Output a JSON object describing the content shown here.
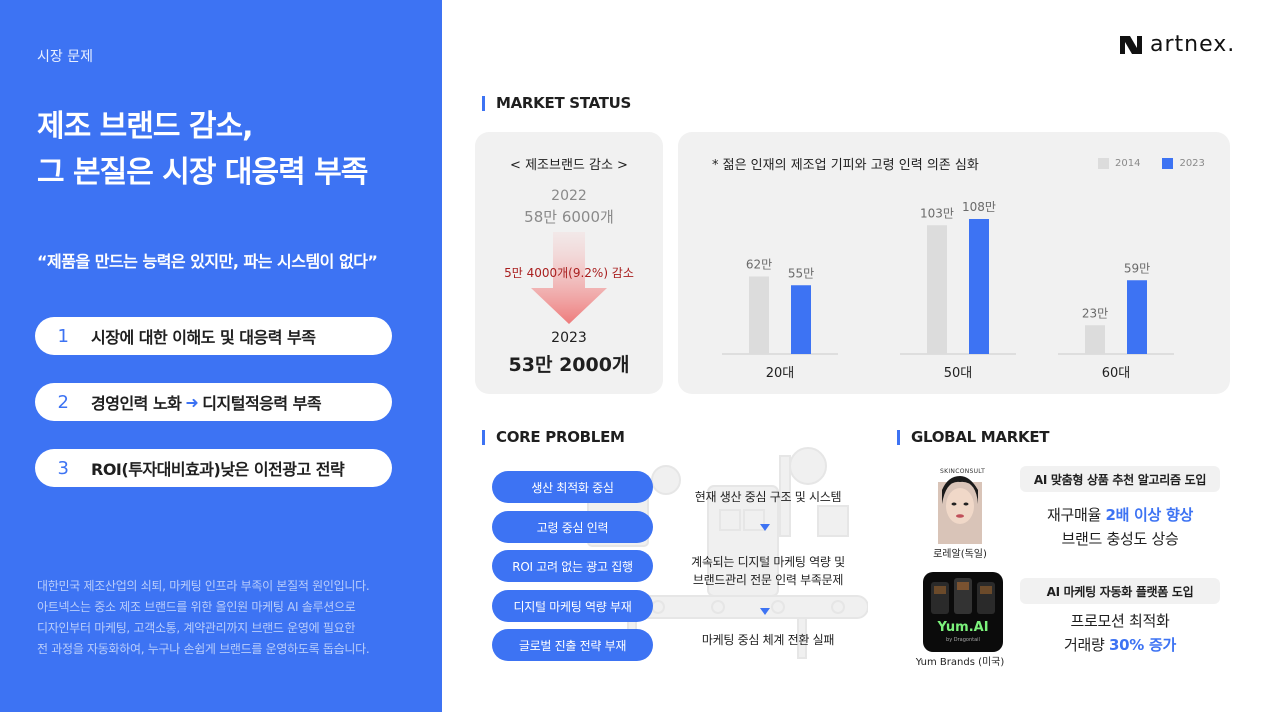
{
  "left": {
    "section_label": "시장 문제",
    "headline_1": "제조 브랜드 감소,",
    "headline_2": "그 본질은 시장 대응력 부족",
    "quote": "“제품을 만드는 능력은 있지만, 파는 시스템이 없다”",
    "items": [
      {
        "num": "1",
        "text": "시장에 대한 이해도 및 대응력 부족"
      },
      {
        "num": "2",
        "text_a": "경영인력 노화",
        "arrow": "➜",
        "text_b": "디지털적응력 부족"
      },
      {
        "num": "3",
        "text": "ROI(투자대비효과)낮은 이전광고 전략"
      }
    ],
    "desc": [
      "대한민국 제조산업의 쇠퇴, 마케팅 인프라 부족이 본질적 원인입니다.",
      "아트넥스는 중소 제조 브랜드를 위한 올인원 마케팅 AI 솔루션으로",
      "디자인부터 마케팅, 고객소통, 계약관리까지 브랜드 운영에 필요한",
      "전 과정을 자동화하여, 누구나 손쉽게 브랜드를 운영하도록 돕습니다."
    ]
  },
  "logo": {
    "text": "artnex."
  },
  "market_status": {
    "title": "MARKET STATUS",
    "decline_card": {
      "title": "< 제조브랜드 감소 >",
      "year_from": "2022",
      "value_from": "58만 6000개",
      "decrease": "5만 4000개(9.2%) 감소",
      "year_to": "2023",
      "value_to": "53만 2000개"
    }
  },
  "chart_data": {
    "type": "bar",
    "title": "* 젊은 인재의 제조업 기피와 고령 인력 의존 심화",
    "categories": [
      "20대",
      "50대",
      "60대"
    ],
    "series": [
      {
        "name": "2014",
        "values": [
          62,
          103,
          23
        ],
        "labels": [
          "62만",
          "103만",
          "23만"
        ],
        "color": "#dcdcdc"
      },
      {
        "name": "2023",
        "values": [
          55,
          108,
          59
        ],
        "labels": [
          "55만",
          "108만",
          "59만"
        ],
        "color": "#3d73f3"
      }
    ],
    "ylim": [
      0,
      120
    ],
    "legend": "top-right",
    "grid": false
  },
  "core_problem": {
    "title": "CORE PROBLEM",
    "pills": [
      "생산 최적화 중심",
      "고령 중심 인력",
      "ROI 고려 없는 광고 집행",
      "디지털 마케팅 역량 부재",
      "글로벌 진출 전략 부재"
    ],
    "step_1": "현재 생산 중심 구조 및 시스템",
    "step_2a": "계속되는 디지털 마케팅 역량 및",
    "step_2b": "브랜드관리 전문 인력 부족문제",
    "step_3": "마케팅 중심 체계 전환 실패"
  },
  "global_market": {
    "title": "GLOBAL MARKET",
    "case_1": {
      "thumb_label": "SKINCONSULT",
      "caption": "로레알(독일)",
      "tag": "AI 맞춤형 상품 추천 알고리즘 도입",
      "line_1_pre": "재구매율 ",
      "line_1_em": "2배 이상 향상",
      "line_2_pre": "브랜드 충성도 ",
      "line_2_em": "상승"
    },
    "case_2": {
      "thumb_label": "Yum.AI",
      "thumb_sub": "by Dragontail",
      "caption": "Yum Brands (미국)",
      "tag": "AI 마케팅 자동화 플랫폼 도입",
      "line_1_pre": "프로모션 최적화",
      "line_2_pre": "거래량 ",
      "line_2_em": "30% 증가"
    }
  }
}
